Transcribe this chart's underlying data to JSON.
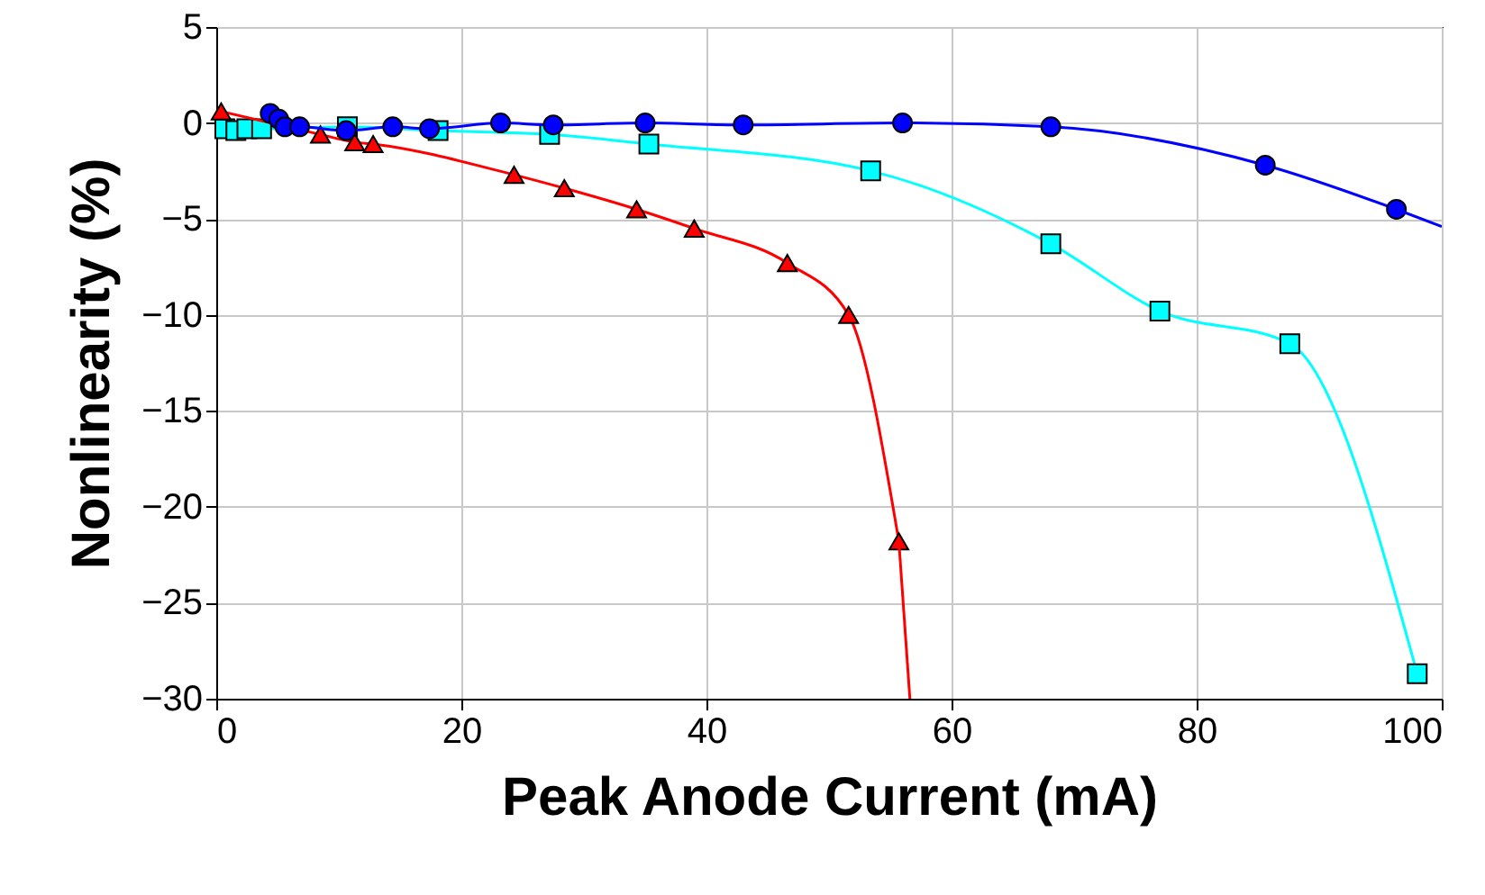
{
  "chart_data": {
    "type": "line",
    "xlabel": "Peak Anode Current (mA)",
    "ylabel": "Nonlinearity (%)",
    "xlim": [
      0,
      100
    ],
    "xticks": [
      0,
      20,
      40,
      60,
      80,
      100
    ],
    "ylim": [
      -30,
      5
    ],
    "yticks": [
      -30,
      -25,
      -20,
      -15,
      -10,
      -5,
      0,
      5
    ],
    "grid": true,
    "series": [
      {
        "color": "#00ffff",
        "marker": "square",
        "x": [
          0.7,
          1.6,
          2.5,
          3.7,
          10.7,
          18.1,
          27.2,
          35.3,
          53.4,
          68.1,
          77,
          87.6,
          98
        ],
        "values": [
          -0.3,
          -0.4,
          -0.3,
          -0.3,
          -0.2,
          -0.4,
          -0.6,
          -1.1,
          -2.5,
          -6.3,
          -9.8,
          -11.5,
          -28.7
        ]
      },
      {
        "color": "#ff0000",
        "marker": "triangle",
        "x": [
          0.4,
          8.5,
          11.3,
          12.8,
          24.3,
          28.4,
          34.3,
          39,
          46.6,
          51.6,
          55.7
        ],
        "values": [
          0.6,
          -0.6,
          -1.0,
          -1.1,
          -2.7,
          -3.4,
          -4.5,
          -5.5,
          -7.3,
          -10.0,
          -21.8
        ]
      },
      {
        "color": "#ff0000",
        "marker": "none",
        "x": [
          55.7,
          56.6
        ],
        "values": [
          -21.8,
          -30
        ]
      },
      {
        "color": "#0000ff",
        "marker": "circle",
        "x": [
          4.4,
          5.1,
          5.6,
          6.8,
          10.6,
          14.4,
          17.4,
          23.2,
          27.5,
          35,
          43,
          56,
          68.1,
          85.6,
          96.3
        ],
        "values": [
          0.5,
          0.2,
          -0.2,
          -0.2,
          -0.4,
          -0.2,
          -0.3,
          0,
          -0.1,
          0,
          -0.1,
          0,
          -0.2,
          -2.2,
          -4.5
        ]
      },
      {
        "color": "#0000ff",
        "marker": "none",
        "x": [
          96.3,
          100
        ],
        "values": [
          -4.5,
          -5.4
        ]
      }
    ]
  }
}
